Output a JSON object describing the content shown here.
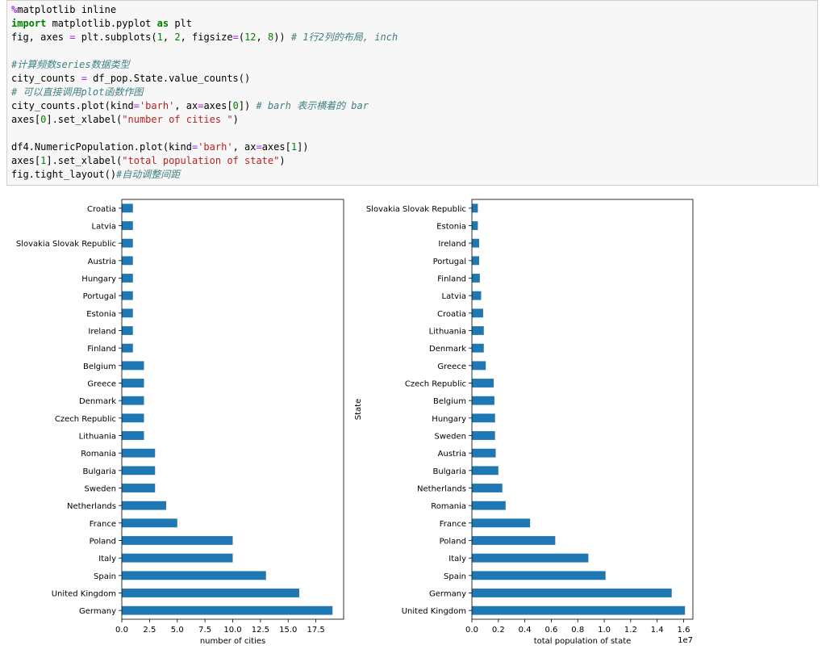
{
  "code_cell": {
    "lines": [
      [
        {
          "t": "%",
          "c": "m"
        },
        {
          "t": "matplotlib inline",
          "c": ""
        }
      ],
      [
        {
          "t": "import",
          "c": "k"
        },
        {
          "t": " matplotlib.pyplot ",
          "c": ""
        },
        {
          "t": "as",
          "c": "k"
        },
        {
          "t": " plt",
          "c": ""
        }
      ],
      [
        {
          "t": "fig, axes ",
          "c": ""
        },
        {
          "t": "=",
          "c": "o"
        },
        {
          "t": " plt.subplots(",
          "c": ""
        },
        {
          "t": "1",
          "c": "n"
        },
        {
          "t": ", ",
          "c": ""
        },
        {
          "t": "2",
          "c": "n"
        },
        {
          "t": ", figsize",
          "c": ""
        },
        {
          "t": "=",
          "c": "o"
        },
        {
          "t": "(",
          "c": ""
        },
        {
          "t": "12",
          "c": "n"
        },
        {
          "t": ", ",
          "c": ""
        },
        {
          "t": "8",
          "c": "n"
        },
        {
          "t": ")) ",
          "c": ""
        },
        {
          "t": "# 1行2列的布局, inch",
          "c": "c"
        }
      ],
      [
        {
          "t": "",
          "c": ""
        }
      ],
      [
        {
          "t": "#计算频数series数据类型",
          "c": "c"
        }
      ],
      [
        {
          "t": "city_counts ",
          "c": ""
        },
        {
          "t": "=",
          "c": "o"
        },
        {
          "t": " df_pop.State.value_counts()",
          "c": ""
        }
      ],
      [
        {
          "t": "# 可以直接调用plot函数作图",
          "c": "c"
        }
      ],
      [
        {
          "t": "city_counts.plot(kind",
          "c": ""
        },
        {
          "t": "=",
          "c": "o"
        },
        {
          "t": "'barh'",
          "c": "s"
        },
        {
          "t": ", ax",
          "c": ""
        },
        {
          "t": "=",
          "c": "o"
        },
        {
          "t": "axes[",
          "c": ""
        },
        {
          "t": "0",
          "c": "n"
        },
        {
          "t": "]) ",
          "c": ""
        },
        {
          "t": "# barh 表示横着的 bar",
          "c": "c"
        }
      ],
      [
        {
          "t": "axes[",
          "c": ""
        },
        {
          "t": "0",
          "c": "n"
        },
        {
          "t": "].set_xlabel(",
          "c": ""
        },
        {
          "t": "\"number of cities \"",
          "c": "s"
        },
        {
          "t": ")",
          "c": ""
        }
      ],
      [
        {
          "t": "",
          "c": ""
        }
      ],
      [
        {
          "t": "df4.NumericPopulation.plot(kind",
          "c": ""
        },
        {
          "t": "=",
          "c": "o"
        },
        {
          "t": "'barh'",
          "c": "s"
        },
        {
          "t": ", ax",
          "c": ""
        },
        {
          "t": "=",
          "c": "o"
        },
        {
          "t": "axes[",
          "c": ""
        },
        {
          "t": "1",
          "c": "n"
        },
        {
          "t": "])",
          "c": ""
        }
      ],
      [
        {
          "t": "axes[",
          "c": ""
        },
        {
          "t": "1",
          "c": "n"
        },
        {
          "t": "].set_xlabel(",
          "c": ""
        },
        {
          "t": "\"total population of state\"",
          "c": "s"
        },
        {
          "t": ")",
          "c": ""
        }
      ],
      [
        {
          "t": "fig.tight_layout()",
          "c": ""
        },
        {
          "t": "#自动调整间距",
          "c": "c"
        }
      ]
    ]
  },
  "colors": {
    "bar": "#1f77b4",
    "axis": "#000000",
    "text": "#000000"
  },
  "chart_data": [
    {
      "type": "bar",
      "orientation": "horizontal",
      "categories": [
        "Croatia",
        "Latvia",
        "Slovakia Slovak Republic",
        "Austria",
        "Hungary",
        "Portugal",
        "Estonia",
        "Ireland",
        "Finland",
        "Belgium",
        "Greece",
        "Denmark",
        "Czech Republic",
        "Lithuania",
        "Romania",
        "Bulgaria",
        "Sweden",
        "Netherlands",
        "France",
        "Poland",
        "Italy",
        "Spain",
        "United Kingdom",
        "Germany"
      ],
      "values": [
        1,
        1,
        1,
        1,
        1,
        1,
        1,
        1,
        1,
        2,
        2,
        2,
        2,
        2,
        3,
        3,
        3,
        4,
        5,
        10,
        10,
        13,
        16,
        19
      ],
      "xlim": [
        0,
        20
      ],
      "xticks": [
        0,
        2.5,
        5,
        7.5,
        10,
        12.5,
        15,
        17.5
      ],
      "xtick_labels": [
        "0.0",
        "2.5",
        "5.0",
        "7.5",
        "10.0",
        "12.5",
        "15.0",
        "17.5"
      ],
      "title": "",
      "xlabel": "number of cities",
      "ylabel": "",
      "offset_label": "",
      "grid": false
    },
    {
      "type": "bar",
      "orientation": "horizontal",
      "categories": [
        "Slovakia Slovak Republic",
        "Estonia",
        "Ireland",
        "Portugal",
        "Finland",
        "Latvia",
        "Croatia",
        "Lithuania",
        "Denmark",
        "Greece",
        "Czech Republic",
        "Belgium",
        "Hungary",
        "Sweden",
        "Austria",
        "Bulgaria",
        "Netherlands",
        "Romania",
        "France",
        "Poland",
        "Italy",
        "Spain",
        "Germany",
        "United Kingdom"
      ],
      "values": [
        450000,
        450000,
        550000,
        550000,
        600000,
        700000,
        850000,
        900000,
        900000,
        1050000,
        1650000,
        1700000,
        1750000,
        1750000,
        1800000,
        2000000,
        2300000,
        2550000,
        4400000,
        6300000,
        8800000,
        10100000,
        15100000,
        16100000
      ],
      "xlim": [
        0,
        16700000
      ],
      "xticks": [
        0,
        2000000,
        4000000,
        6000000,
        8000000,
        10000000,
        12000000,
        14000000,
        16000000
      ],
      "xtick_labels": [
        "0.0",
        "0.2",
        "0.4",
        "0.6",
        "0.8",
        "1.0",
        "1.2",
        "1.4",
        "1.6"
      ],
      "title": "",
      "xlabel": "total population of state",
      "ylabel": "State",
      "offset_label": "1e7",
      "grid": false
    }
  ]
}
